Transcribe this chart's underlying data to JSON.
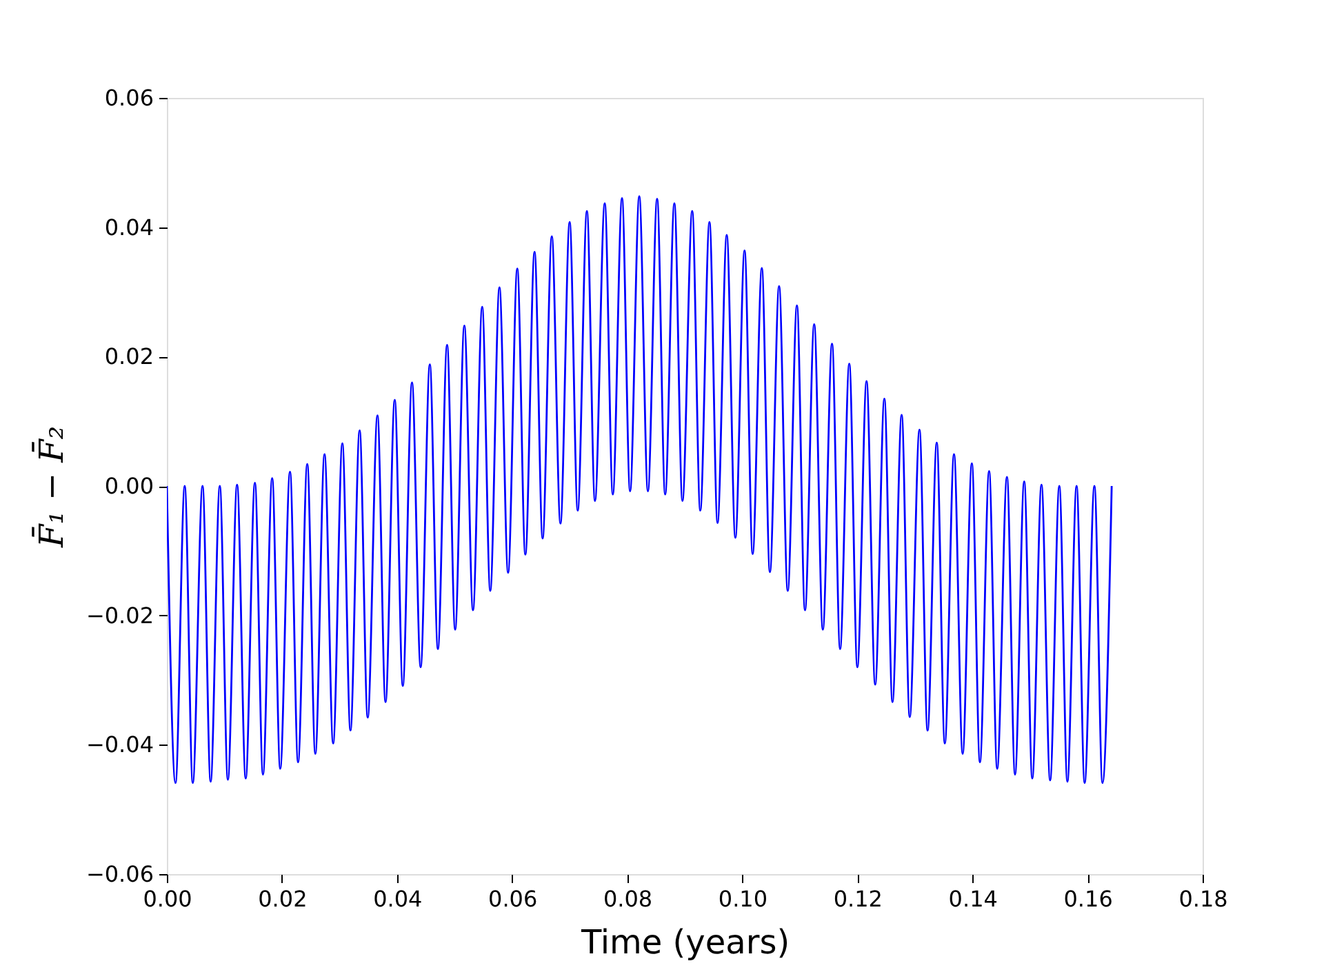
{
  "chart_data": {
    "type": "line",
    "xlabel": "Time (years)",
    "ylabel": "F̄₁ − F̄₂",
    "xlim": [
      0,
      0.18
    ],
    "ylim": [
      -0.06,
      0.06
    ],
    "xticks": [
      {
        "value": 0,
        "label": "0.00"
      },
      {
        "value": 0.02,
        "label": "0.02"
      },
      {
        "value": 0.04,
        "label": "0.04"
      },
      {
        "value": 0.06,
        "label": "0.06"
      },
      {
        "value": 0.08,
        "label": "0.08"
      },
      {
        "value": 0.1,
        "label": "0.10"
      },
      {
        "value": 0.12,
        "label": "0.12"
      },
      {
        "value": 0.14,
        "label": "0.14"
      },
      {
        "value": 0.16,
        "label": "0.16"
      },
      {
        "value": 0.18,
        "label": "0.18"
      }
    ],
    "yticks": [
      {
        "value": -0.06,
        "label": "−0.06"
      },
      {
        "value": -0.04,
        "label": "−0.04"
      },
      {
        "value": -0.02,
        "label": "−0.02"
      },
      {
        "value": 0,
        "label": "0.00"
      },
      {
        "value": 0.02,
        "label": "0.02"
      },
      {
        "value": 0.04,
        "label": "0.04"
      },
      {
        "value": 0.06,
        "label": "0.06"
      }
    ],
    "grid": false,
    "legend": false,
    "marker": "none",
    "line_style": "solid",
    "series": [
      {
        "color": "#0000ff",
        "x": [
          0,
          0.0015,
          0.0031,
          0.0045,
          0.0062,
          0.0076,
          0.0092,
          0.0106,
          0.0122,
          0.0137,
          0.0153,
          0.0167,
          0.0183,
          0.0197,
          0.0214,
          0.0228,
          0.0244,
          0.0258,
          0.0274,
          0.0289,
          0.0305,
          0.0319,
          0.0335,
          0.0349,
          0.0366,
          0.038,
          0.0396,
          0.041,
          0.0426,
          0.0441,
          0.0457,
          0.0471,
          0.0487,
          0.0501,
          0.0517,
          0.0532,
          0.0548,
          0.0562,
          0.0578,
          0.0593,
          0.0609,
          0.0623,
          0.0639,
          0.0653,
          0.0669,
          0.0684,
          0.07,
          0.0714,
          0.073,
          0.0744,
          0.0761,
          0.0775,
          0.0791,
          0.0805,
          0.0821,
          0.0836,
          0.0852,
          0.0866,
          0.0882,
          0.0896,
          0.0913,
          0.0927,
          0.0943,
          0.0957,
          0.0973,
          0.0988,
          0.1004,
          0.1018,
          0.1034,
          0.1048,
          0.1064,
          0.1079,
          0.1095,
          0.1109,
          0.1125,
          0.114,
          0.1156,
          0.117,
          0.1186,
          0.12,
          0.1216,
          0.1231,
          0.1247,
          0.1261,
          0.1277,
          0.1291,
          0.1308,
          0.1322,
          0.1338,
          0.1352,
          0.1368,
          0.1383,
          0.1399,
          0.1413,
          0.1429,
          0.1443,
          0.146,
          0.1474,
          0.149,
          0.1504,
          0.152,
          0.1535,
          0.1551,
          0.1565,
          0.1581,
          0.1595,
          0.1612,
          0.1626,
          0.1642
        ],
        "values": [
          0,
          -0.0459,
          0,
          -0.0459,
          0,
          -0.0457,
          0,
          -0.0454,
          0.0002,
          -0.0452,
          0.0005,
          -0.0446,
          0.0012,
          -0.0437,
          0.0022,
          -0.0427,
          0.0034,
          -0.0414,
          0.0049,
          -0.0398,
          0.0066,
          -0.0378,
          0.0086,
          -0.0358,
          0.0109,
          -0.0334,
          0.0133,
          -0.0309,
          0.016,
          -0.028,
          0.0188,
          -0.0252,
          0.0218,
          -0.0222,
          0.0248,
          -0.0192,
          0.0277,
          -0.0162,
          0.0307,
          -0.0134,
          0.0336,
          -0.0106,
          0.0362,
          -0.0081,
          0.0386,
          -0.0058,
          0.0408,
          -0.0038,
          0.0425,
          -0.0023,
          0.0437,
          -0.0013,
          0.0445,
          -0.0008,
          0.0448,
          -0.0008,
          0.0444,
          -0.0013,
          0.0437,
          -0.0023,
          0.0425,
          -0.0038,
          0.0408,
          -0.0057,
          0.0388,
          -0.008,
          0.0364,
          -0.0105,
          0.0337,
          -0.0133,
          0.0309,
          -0.0162,
          0.0279,
          -0.0192,
          0.025,
          -0.0222,
          0.022,
          -0.0252,
          0.0189,
          -0.028,
          0.0162,
          -0.0307,
          0.0135,
          -0.0334,
          0.011,
          -0.0357,
          0.0087,
          -0.0378,
          0.0067,
          -0.0398,
          0.0049,
          -0.0414,
          0.0035,
          -0.0427,
          0.0023,
          -0.0437,
          0.0014,
          -0.0446,
          0.0007,
          -0.0452,
          0.0002,
          -0.0455,
          0,
          -0.0457,
          0,
          -0.0459,
          0,
          -0.0459,
          0
        ]
      }
    ]
  }
}
